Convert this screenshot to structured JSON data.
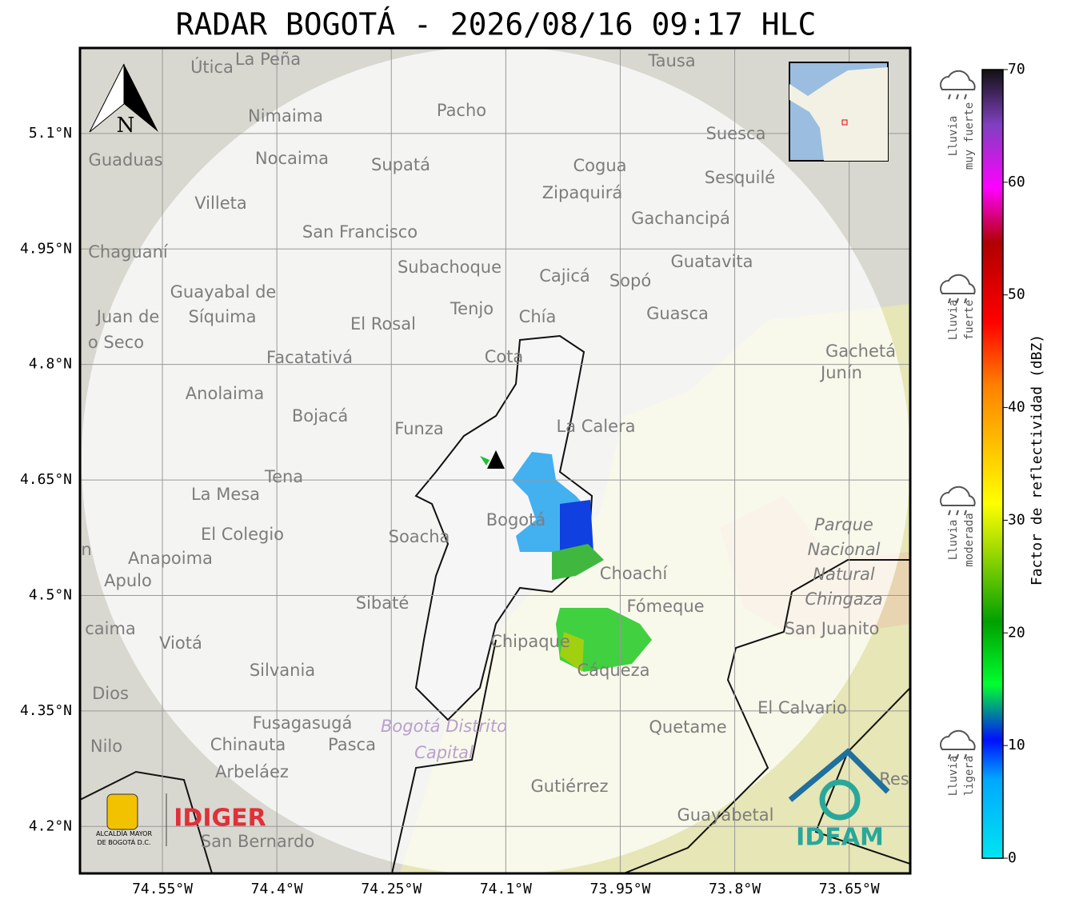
{
  "title": "RADAR BOGOTÁ - 2026/08/16 09:17 HLC",
  "map": {
    "xlim": [
      -74.658,
      -73.57
    ],
    "ylim": [
      4.139,
      5.211
    ],
    "xticks": [
      {
        "value": -74.55,
        "label": "74.55°W"
      },
      {
        "value": -74.4,
        "label": "74.4°W"
      },
      {
        "value": -74.25,
        "label": "74.25°W"
      },
      {
        "value": -74.1,
        "label": "74.1°W"
      },
      {
        "value": -73.95,
        "label": "73.95°W"
      },
      {
        "value": -73.8,
        "label": "73.8°W"
      },
      {
        "value": -73.65,
        "label": "73.65°W"
      }
    ],
    "yticks": [
      {
        "value": 5.1,
        "label": "5.1°N"
      },
      {
        "value": 4.95,
        "label": "4.95°N"
      },
      {
        "value": 4.8,
        "label": "4.8°N"
      },
      {
        "value": 4.65,
        "label": "4.65°N"
      },
      {
        "value": 4.5,
        "label": "4.5°N"
      },
      {
        "value": 4.35,
        "label": "4.35°N"
      },
      {
        "value": 4.2,
        "label": "4.2°N"
      }
    ],
    "north": "N",
    "places": [
      "Útica",
      "La Peña",
      "Tausa",
      "Nimaima",
      "Pacho",
      "Guaduas",
      "Nocaima",
      "Supatá",
      "Cogua",
      "Suesca",
      "Sesquilé",
      "Villeta",
      "Zipaquirá",
      "Gachancipá",
      "San Francisco",
      "Chaguaní",
      "Subachoque",
      "Cajicá",
      "Sopó",
      "Guatavita",
      "Guayabal de",
      "Síquima",
      "Juan de",
      "o Seco",
      "Tenjo",
      "El Rosal",
      "Chía",
      "Guasca",
      "Facatativá",
      "Cota",
      "Gachetá",
      "Junín",
      "Anolaima",
      "Bojacá",
      "Funza",
      "La Calera",
      "Tena",
      "La Mesa",
      "El Colegio",
      "Soacha",
      "Bogotá",
      "Anapoima",
      "Apulo",
      "Choachí",
      "Sibaté",
      "Fómeque",
      "San Juanito",
      "caima",
      "Viotá",
      "Chipaque",
      "Silvania",
      "Cáqueza",
      "Dios",
      "El Calvario",
      "Fusagasugá",
      "Quetame",
      "Nilo",
      "Chinauta",
      "Pasca",
      "Arbeláez",
      "Gutiérrez",
      "Guayabetal",
      "San Bernardo",
      "Res",
      "n"
    ],
    "park": [
      "Parque",
      "Nacional",
      "Natural",
      "Chingaza"
    ],
    "district": [
      "Bogotá Distrito",
      "Capital"
    ],
    "logos": {
      "alcaldia": [
        "ALCALDÍA MAYOR",
        "DE BOGOTÁ D.C."
      ],
      "idiger": "IDIGER",
      "ideam": "IDEAM"
    }
  },
  "colorbar": {
    "label": "Factor de reflectividad (dBZ)",
    "lim": [
      0,
      70
    ],
    "ticks": [
      0,
      10,
      20,
      30,
      40,
      50,
      60,
      70
    ]
  },
  "legend": [
    [
      "Lluvia",
      "muy fuerte"
    ],
    [
      "Lluvia",
      "fuerte"
    ],
    [
      "Lluvia",
      "moderada"
    ],
    [
      "Lluvia",
      "ligera"
    ]
  ]
}
